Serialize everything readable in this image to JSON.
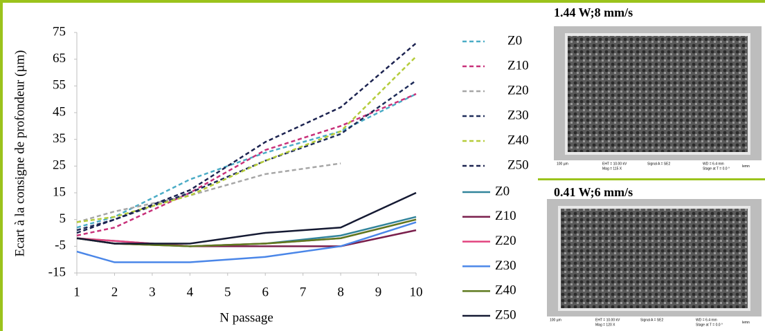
{
  "chart_data": {
    "type": "line",
    "ylabel": "Ecart à la consigne de profondeur (µm)",
    "xlabel": "N passage",
    "xlim": [
      1,
      10
    ],
    "xticks": [
      1,
      2,
      3,
      4,
      5,
      6,
      7,
      8,
      9,
      10
    ],
    "ylim": [
      -15,
      75
    ],
    "yticks": [
      -15,
      -5,
      5,
      15,
      25,
      35,
      45,
      55,
      65,
      75
    ],
    "x": [
      1,
      2,
      4,
      6,
      8,
      10
    ],
    "series": [
      {
        "name": "Z0",
        "color": "#4bacc6",
        "dashed": true,
        "values": [
          2,
          6,
          20,
          30,
          38,
          52
        ]
      },
      {
        "name": "Z10",
        "color": "#c8317a",
        "dashed": true,
        "values": [
          -1,
          2,
          15,
          31,
          40,
          52
        ]
      },
      {
        "name": "Z20",
        "color": "#a6a6a6",
        "dashed": true,
        "values": [
          4,
          8,
          14,
          22,
          26,
          null
        ]
      },
      {
        "name": "Z30",
        "color": "#1f2d5a",
        "dashed": true,
        "values": [
          1,
          5,
          15,
          27,
          37,
          57
        ]
      },
      {
        "name": "Z40",
        "color": "#b5cc3a",
        "dashed": true,
        "values": [
          4,
          6,
          14,
          27,
          38,
          66
        ]
      },
      {
        "name": "Z50",
        "color": "#1c2350",
        "dashed": true,
        "values": [
          0,
          5,
          16,
          34,
          47,
          71
        ]
      },
      {
        "name": "Z0",
        "color": "#31849b",
        "dashed": false,
        "values": [
          -2,
          -3,
          -5,
          -4,
          -1,
          6
        ]
      },
      {
        "name": "Z10",
        "color": "#7a1f4c",
        "dashed": false,
        "values": [
          -2,
          -4,
          -5,
          -5,
          -5,
          1
        ]
      },
      {
        "name": "Z20",
        "color": "#e2437e",
        "dashed": false,
        "values": [
          -2,
          -3,
          -5,
          -4,
          -2,
          5
        ]
      },
      {
        "name": "Z30",
        "color": "#4a86e8",
        "dashed": false,
        "values": [
          -7,
          -11,
          -11,
          -9,
          -5,
          4
        ]
      },
      {
        "name": "Z40",
        "color": "#5e7a1e",
        "dashed": false,
        "values": [
          -2,
          -4,
          -5,
          -4,
          -2,
          5
        ]
      },
      {
        "name": "Z50",
        "color": "#151a33",
        "dashed": false,
        "values": [
          -2,
          -4,
          -4,
          0,
          2,
          15
        ]
      }
    ]
  },
  "images": [
    {
      "label": "1.44 W;8 mm/s",
      "caption": [
        "100 µm",
        "EHT = 10.00 kV",
        "Mag =  115 X",
        "Signal A = SE2",
        "WD =  6.4 mm",
        "Stage at T =  0.0 °",
        "lemn"
      ]
    },
    {
      "label": "0.41 W;6 mm/s",
      "caption": [
        "100 µm",
        "EHT = 10.00 kV",
        "Mag =  120 X",
        "Signal A = SE2",
        "WD =  6.4 mm",
        "Stage at T =  0.0 °",
        "lemn"
      ]
    }
  ]
}
